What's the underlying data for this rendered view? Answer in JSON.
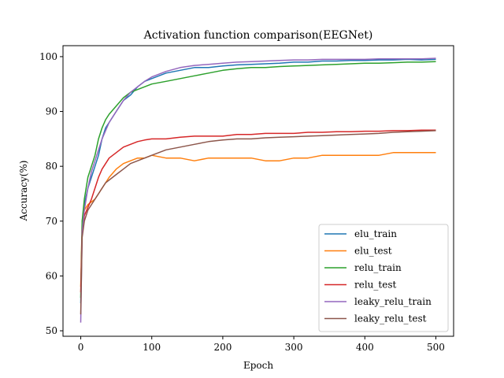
{
  "chart_data": {
    "type": "line",
    "title": "Activation function comparison(EEGNet)",
    "xlabel": "Epoch",
    "ylabel": "Accuracy(%)",
    "xlim": [
      -25,
      525
    ],
    "ylim": [
      49,
      102
    ],
    "xticks": [
      0,
      100,
      200,
      300,
      400,
      500
    ],
    "yticks": [
      50,
      60,
      70,
      80,
      90,
      100
    ],
    "grid": false,
    "legend_position": "lower right",
    "series": [
      {
        "name": "elu_train",
        "color": "#1f77b4",
        "points": [
          [
            0,
            55
          ],
          [
            2,
            69
          ],
          [
            5,
            73
          ],
          [
            10,
            76
          ],
          [
            15,
            78
          ],
          [
            20,
            80
          ],
          [
            25,
            82
          ],
          [
            30,
            85
          ],
          [
            35,
            87
          ],
          [
            40,
            88
          ],
          [
            50,
            90
          ],
          [
            60,
            92
          ],
          [
            70,
            93
          ],
          [
            80,
            94.5
          ],
          [
            90,
            95.5
          ],
          [
            100,
            96
          ],
          [
            120,
            97
          ],
          [
            140,
            97.5
          ],
          [
            160,
            98
          ],
          [
            180,
            98
          ],
          [
            200,
            98.3
          ],
          [
            220,
            98.5
          ],
          [
            240,
            98.6
          ],
          [
            260,
            98.7
          ],
          [
            280,
            98.8
          ],
          [
            300,
            99
          ],
          [
            320,
            99
          ],
          [
            340,
            99.2
          ],
          [
            360,
            99.2
          ],
          [
            380,
            99.3
          ],
          [
            400,
            99.3
          ],
          [
            420,
            99.4
          ],
          [
            440,
            99.4
          ],
          [
            460,
            99.5
          ],
          [
            480,
            99.4
          ],
          [
            500,
            99.5
          ]
        ]
      },
      {
        "name": "elu_test",
        "color": "#ff7f0e",
        "points": [
          [
            0,
            58
          ],
          [
            2,
            70
          ],
          [
            5,
            72
          ],
          [
            10,
            73
          ],
          [
            15,
            73.5
          ],
          [
            20,
            74
          ],
          [
            25,
            75
          ],
          [
            30,
            76
          ],
          [
            35,
            77
          ],
          [
            40,
            78
          ],
          [
            50,
            79.5
          ],
          [
            60,
            80.5
          ],
          [
            70,
            81
          ],
          [
            80,
            81.5
          ],
          [
            90,
            81.5
          ],
          [
            100,
            82
          ],
          [
            120,
            81.5
          ],
          [
            140,
            81.5
          ],
          [
            160,
            81
          ],
          [
            180,
            81.5
          ],
          [
            200,
            81.5
          ],
          [
            220,
            81.5
          ],
          [
            240,
            81.5
          ],
          [
            260,
            81
          ],
          [
            280,
            81
          ],
          [
            300,
            81.5
          ],
          [
            320,
            81.5
          ],
          [
            340,
            82
          ],
          [
            360,
            82
          ],
          [
            380,
            82
          ],
          [
            400,
            82
          ],
          [
            420,
            82
          ],
          [
            440,
            82.5
          ],
          [
            460,
            82.5
          ],
          [
            480,
            82.5
          ],
          [
            500,
            82.5
          ]
        ]
      },
      {
        "name": "relu_train",
        "color": "#2ca02c",
        "points": [
          [
            0,
            56
          ],
          [
            2,
            70
          ],
          [
            5,
            74
          ],
          [
            10,
            78
          ],
          [
            15,
            80
          ],
          [
            20,
            82
          ],
          [
            25,
            85
          ],
          [
            30,
            87
          ],
          [
            35,
            88.5
          ],
          [
            40,
            89.5
          ],
          [
            50,
            91
          ],
          [
            60,
            92.5
          ],
          [
            70,
            93.5
          ],
          [
            80,
            94
          ],
          [
            90,
            94.5
          ],
          [
            100,
            95
          ],
          [
            120,
            95.5
          ],
          [
            140,
            96
          ],
          [
            160,
            96.5
          ],
          [
            180,
            97
          ],
          [
            200,
            97.5
          ],
          [
            220,
            97.8
          ],
          [
            240,
            98
          ],
          [
            260,
            98
          ],
          [
            280,
            98.2
          ],
          [
            300,
            98.3
          ],
          [
            320,
            98.4
          ],
          [
            340,
            98.5
          ],
          [
            360,
            98.6
          ],
          [
            380,
            98.7
          ],
          [
            400,
            98.8
          ],
          [
            420,
            98.8
          ],
          [
            440,
            98.9
          ],
          [
            460,
            99
          ],
          [
            480,
            99
          ],
          [
            500,
            99.1
          ]
        ]
      },
      {
        "name": "relu_test",
        "color": "#d62728",
        "points": [
          [
            0,
            57
          ],
          [
            2,
            68
          ],
          [
            5,
            71
          ],
          [
            10,
            72.5
          ],
          [
            15,
            74
          ],
          [
            20,
            76
          ],
          [
            25,
            78
          ],
          [
            30,
            79.5
          ],
          [
            35,
            80.5
          ],
          [
            40,
            81.5
          ],
          [
            50,
            82.5
          ],
          [
            60,
            83.5
          ],
          [
            70,
            84
          ],
          [
            80,
            84.5
          ],
          [
            90,
            84.8
          ],
          [
            100,
            85
          ],
          [
            120,
            85
          ],
          [
            140,
            85.3
          ],
          [
            160,
            85.5
          ],
          [
            180,
            85.5
          ],
          [
            200,
            85.5
          ],
          [
            220,
            85.8
          ],
          [
            240,
            85.8
          ],
          [
            260,
            86
          ],
          [
            280,
            86
          ],
          [
            300,
            86
          ],
          [
            320,
            86.2
          ],
          [
            340,
            86.2
          ],
          [
            360,
            86.3
          ],
          [
            380,
            86.3
          ],
          [
            400,
            86.4
          ],
          [
            420,
            86.4
          ],
          [
            440,
            86.5
          ],
          [
            460,
            86.5
          ],
          [
            480,
            86.6
          ],
          [
            500,
            86.6
          ]
        ]
      },
      {
        "name": "leaky_relu_train",
        "color": "#9467bd",
        "points": [
          [
            0,
            51.5
          ],
          [
            2,
            68
          ],
          [
            5,
            72
          ],
          [
            10,
            76
          ],
          [
            15,
            79
          ],
          [
            20,
            81
          ],
          [
            25,
            83
          ],
          [
            30,
            85
          ],
          [
            35,
            86.5
          ],
          [
            40,
            88
          ],
          [
            50,
            90
          ],
          [
            60,
            92
          ],
          [
            70,
            93.5
          ],
          [
            80,
            94.5
          ],
          [
            90,
            95.5
          ],
          [
            100,
            96.3
          ],
          [
            120,
            97.3
          ],
          [
            140,
            98
          ],
          [
            160,
            98.4
          ],
          [
            180,
            98.6
          ],
          [
            200,
            98.8
          ],
          [
            220,
            99
          ],
          [
            240,
            99.1
          ],
          [
            260,
            99.2
          ],
          [
            280,
            99.3
          ],
          [
            300,
            99.4
          ],
          [
            320,
            99.4
          ],
          [
            340,
            99.5
          ],
          [
            360,
            99.5
          ],
          [
            380,
            99.5
          ],
          [
            400,
            99.5
          ],
          [
            420,
            99.6
          ],
          [
            440,
            99.6
          ],
          [
            460,
            99.6
          ],
          [
            480,
            99.6
          ],
          [
            500,
            99.7
          ]
        ]
      },
      {
        "name": "leaky_relu_test",
        "color": "#8c564b",
        "points": [
          [
            0,
            53
          ],
          [
            2,
            67
          ],
          [
            5,
            70
          ],
          [
            10,
            72
          ],
          [
            15,
            73
          ],
          [
            20,
            74
          ],
          [
            25,
            75
          ],
          [
            30,
            76
          ],
          [
            35,
            77
          ],
          [
            40,
            77.5
          ],
          [
            50,
            78.5
          ],
          [
            60,
            79.5
          ],
          [
            70,
            80.5
          ],
          [
            80,
            81
          ],
          [
            90,
            81.5
          ],
          [
            100,
            82
          ],
          [
            120,
            83
          ],
          [
            140,
            83.5
          ],
          [
            160,
            84
          ],
          [
            180,
            84.5
          ],
          [
            200,
            84.8
          ],
          [
            220,
            85
          ],
          [
            240,
            85
          ],
          [
            260,
            85.2
          ],
          [
            280,
            85.3
          ],
          [
            300,
            85.4
          ],
          [
            320,
            85.5
          ],
          [
            340,
            85.6
          ],
          [
            360,
            85.7
          ],
          [
            380,
            85.8
          ],
          [
            400,
            85.9
          ],
          [
            420,
            86
          ],
          [
            440,
            86.2
          ],
          [
            460,
            86.3
          ],
          [
            480,
            86.4
          ],
          [
            500,
            86.5
          ]
        ]
      }
    ]
  }
}
